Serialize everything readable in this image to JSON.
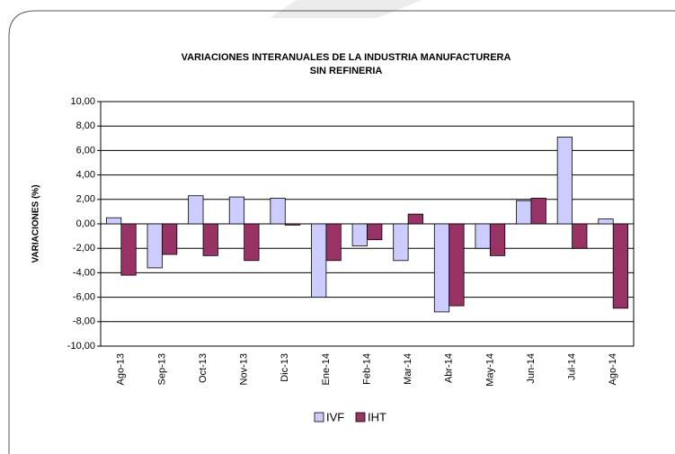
{
  "chart_data": {
    "type": "bar",
    "title": "VARIACIONES INTERANUALES DE LA INDUSTRIA MANUFACTURERA",
    "subtitle": "SIN REFINERIA",
    "y_label": "VARIACIONES (%)",
    "categories": [
      "Ago-13",
      "Sep-13",
      "Oct-13",
      "Nov-13",
      "Dic-13",
      "Ene-14",
      "Feb-14",
      "Mar-14",
      "Abr-14",
      "May-14",
      "Jun-14",
      "Jul-14",
      "Ago-14"
    ],
    "series": [
      {
        "name": "IVF",
        "color": "#ccccff",
        "values": [
          0.5,
          -3.6,
          2.3,
          2.2,
          2.1,
          -6.0,
          -1.8,
          -3.0,
          -7.2,
          -2.0,
          1.9,
          7.1,
          0.4
        ]
      },
      {
        "name": "IHT",
        "color": "#993366",
        "values": [
          -4.2,
          -2.5,
          -2.6,
          -3.0,
          -0.1,
          -3.0,
          -1.3,
          0.8,
          -6.7,
          -2.6,
          2.1,
          -2.0,
          -6.9
        ]
      }
    ],
    "ylim": [
      -10,
      10
    ],
    "yticks": [
      {
        "value": 10,
        "label": "10,00"
      },
      {
        "value": 8,
        "label": "8,00"
      },
      {
        "value": 6,
        "label": "6,00"
      },
      {
        "value": 4,
        "label": "4,00"
      },
      {
        "value": 2,
        "label": "2,00"
      },
      {
        "value": 0,
        "label": "0,00"
      },
      {
        "value": -2,
        "label": "-2,00"
      },
      {
        "value": -4,
        "label": "-4,00"
      },
      {
        "value": -6,
        "label": "-6,00"
      },
      {
        "value": -8,
        "label": "-8,00"
      },
      {
        "value": -10,
        "label": "-10,00"
      }
    ],
    "grid": true,
    "legend": "bottom"
  }
}
